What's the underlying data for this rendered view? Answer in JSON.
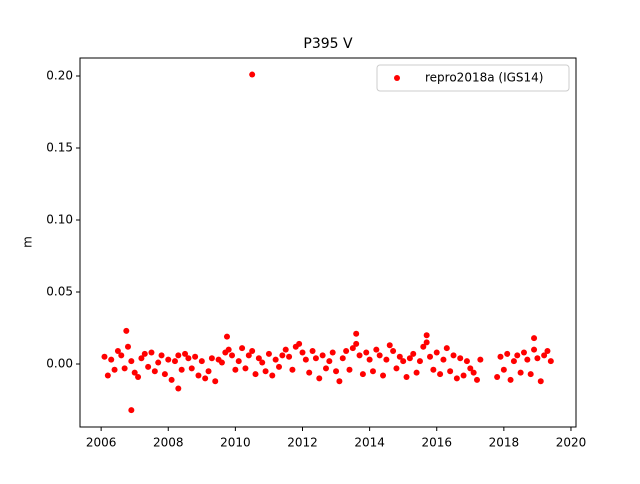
{
  "chart_data": {
    "type": "scatter",
    "title": "P395 V",
    "y_label": "m",
    "xlim": [
      2005.37,
      2020.15
    ],
    "xticks": [
      2006,
      2008,
      2010,
      2012,
      2014,
      2016,
      2018,
      2020
    ],
    "ylim": [
      -0.04375,
      0.2125
    ],
    "yticks": [
      {
        "value": 0,
        "label": "0.00"
      },
      0.05,
      {
        "value": 0.1,
        "label": "0.10"
      },
      0.15,
      {
        "value": 0.2,
        "label": "0.20"
      }
    ],
    "legend_position": "upper right",
    "series": [
      {
        "name": "repro2018a (IGS14)",
        "color": "#ff0000",
        "x": [
          2006.1,
          2006.2,
          2006.3,
          2006.4,
          2006.5,
          2006.6,
          2006.7,
          2006.8,
          2006.9,
          2007.0,
          2007.1,
          2007.2,
          2007.3,
          2007.4,
          2007.5,
          2007.6,
          2007.7,
          2007.8,
          2007.9,
          2008.0,
          2008.1,
          2008.2,
          2008.3,
          2008.4,
          2008.5,
          2008.6,
          2008.7,
          2008.8,
          2008.9,
          2009.0,
          2009.1,
          2009.2,
          2009.3,
          2009.4,
          2009.5,
          2009.6,
          2009.7,
          2009.8,
          2009.9,
          2010.0,
          2010.1,
          2010.2,
          2010.3,
          2010.4,
          2010.5,
          2010.6,
          2010.7,
          2010.8,
          2010.9,
          2011.0,
          2011.1,
          2011.2,
          2011.3,
          2011.4,
          2011.5,
          2011.6,
          2011.7,
          2011.8,
          2011.9,
          2012.0,
          2012.1,
          2012.2,
          2012.3,
          2012.4,
          2012.5,
          2012.6,
          2012.7,
          2012.8,
          2012.9,
          2013.0,
          2013.1,
          2013.2,
          2013.3,
          2013.4,
          2013.5,
          2013.6,
          2013.7,
          2013.8,
          2013.9,
          2014.0,
          2014.1,
          2014.2,
          2014.3,
          2014.4,
          2014.5,
          2014.6,
          2014.7,
          2014.8,
          2014.9,
          2015.0,
          2015.1,
          2015.2,
          2015.3,
          2015.4,
          2015.5,
          2015.6,
          2015.7,
          2015.8,
          2015.9,
          2016.0,
          2016.1,
          2016.2,
          2016.3,
          2016.4,
          2016.5,
          2016.6,
          2016.7,
          2016.8,
          2016.9,
          2017.0,
          2017.1,
          2017.2,
          2017.3,
          2017.8,
          2017.9,
          2018.0,
          2018.1,
          2018.2,
          2018.3,
          2018.4,
          2018.5,
          2018.6,
          2018.7,
          2018.8,
          2018.9,
          2019.0,
          2019.1,
          2019.2,
          2019.3,
          2019.4,
          2010.5,
          2006.9,
          2006.75,
          2008.3,
          2009.75,
          2013.6,
          2015.7,
          2018.9
        ],
        "values": [
          0.005,
          -0.008,
          0.003,
          -0.004,
          0.009,
          0.006,
          -0.003,
          0.012,
          0.002,
          -0.006,
          -0.009,
          0.004,
          0.007,
          -0.002,
          0.008,
          -0.005,
          0.001,
          0.006,
          -0.007,
          0.003,
          -0.011,
          0.002,
          0.006,
          -0.004,
          0.007,
          0.004,
          -0.003,
          0.005,
          -0.008,
          0.002,
          -0.01,
          -0.005,
          0.004,
          -0.012,
          0.003,
          0.001,
          0.008,
          0.01,
          0.006,
          -0.004,
          0.002,
          0.011,
          -0.003,
          0.006,
          0.009,
          -0.007,
          0.004,
          0.001,
          -0.005,
          0.007,
          -0.008,
          0.003,
          -0.002,
          0.006,
          0.01,
          0.005,
          -0.004,
          0.012,
          0.014,
          0.008,
          0.003,
          -0.006,
          0.009,
          0.004,
          -0.01,
          0.006,
          -0.003,
          0.002,
          0.008,
          -0.005,
          -0.012,
          0.004,
          0.009,
          -0.004,
          0.011,
          0.014,
          0.006,
          -0.007,
          0.008,
          0.003,
          -0.005,
          0.01,
          0.006,
          -0.008,
          0.003,
          0.013,
          0.009,
          -0.003,
          0.005,
          0.002,
          -0.009,
          0.004,
          0.007,
          -0.006,
          0.002,
          0.012,
          0.015,
          0.005,
          -0.004,
          0.008,
          -0.007,
          0.003,
          0.011,
          -0.005,
          0.006,
          -0.01,
          0.004,
          -0.008,
          0.002,
          -0.003,
          -0.006,
          -0.011,
          0.003,
          -0.009,
          0.005,
          -0.004,
          0.007,
          -0.011,
          0.002,
          0.006,
          -0.006,
          0.008,
          0.003,
          -0.007,
          0.01,
          0.004,
          -0.012,
          0.006,
          0.009,
          0.002,
          0.201,
          -0.032,
          0.023,
          -0.017,
          0.019,
          0.021,
          0.02,
          0.018
        ]
      }
    ]
  }
}
